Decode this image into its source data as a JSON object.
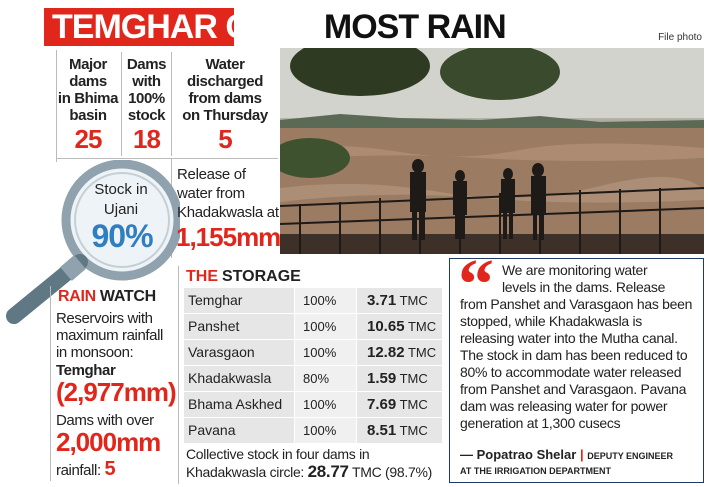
{
  "headline": {
    "part1": "TEMGHAR GETS",
    "part2": "MOST RAIN"
  },
  "credit": "File photo",
  "stats": [
    {
      "label_lines": [
        "Major",
        "dams",
        "in Bhima",
        "basin"
      ],
      "value": "25"
    },
    {
      "label_lines": [
        "Dams",
        "with",
        "100%",
        "stock"
      ],
      "value": "18"
    },
    {
      "label_lines": [
        "Water",
        "discharged",
        "from dams",
        "on Thursday"
      ],
      "value": "5"
    }
  ],
  "ujani": {
    "label_lines": [
      "Stock in",
      "Ujani"
    ],
    "value": "90%"
  },
  "release": {
    "label_lines": [
      "Release of",
      "water from",
      "Khadakwasla at"
    ],
    "value": "1,155mm"
  },
  "rain_watch": {
    "head_red": "RAIN",
    "head_dark": "WATCH",
    "max_label_lines": [
      "Reservoirs with",
      "maximum rainfall",
      "in monsoon:"
    ],
    "max_dam": "Temghar",
    "max_value": "(2,977mm)",
    "over_label": "Dams with over",
    "over_value": "2,000mm",
    "rainfall_label": "rainfall:",
    "rainfall_count": "5"
  },
  "storage": {
    "head_red": "THE",
    "head_dark": "STORAGE",
    "rows": [
      {
        "dam": "Temghar",
        "pct": "100%",
        "tmc": "3.71",
        "unit": "TMC"
      },
      {
        "dam": "Panshet",
        "pct": "100%",
        "tmc": "10.65",
        "unit": "TMC"
      },
      {
        "dam": "Varasgaon",
        "pct": "100%",
        "tmc": "12.82",
        "unit": "TMC"
      },
      {
        "dam": "Khadakwasla",
        "pct": "80%",
        "tmc": "1.59",
        "unit": "TMC"
      },
      {
        "dam": "Bhama Askhed",
        "pct": "100%",
        "tmc": "7.69",
        "unit": "TMC"
      },
      {
        "dam": "Pavana",
        "pct": "100%",
        "tmc": "8.51",
        "unit": "TMC"
      }
    ],
    "collective_line1": "Collective stock in four dams in",
    "collective_prefix": "Khadakwasla circle:",
    "collective_value": "28.77",
    "collective_suffix": "TMC (98.7%)"
  },
  "quote": {
    "lines": [
      "We are monitoring water",
      "levels in the dams. Release",
      "from Panshet and Varasgaon has been",
      "stopped, while Khadakwasla is",
      "releasing water into the Mutha canal.",
      "The stock in dam has been reduced to",
      "80% to accommodate water released",
      "from Panshet and Varasgaon. Pavana",
      "dam was releasing water for power",
      "generation at 1,300 cusecs"
    ],
    "author": "— Popatrao Shelar",
    "sep": "|",
    "role": "DEPUTY ENGINEER",
    "dept": "AT THE IRRIGATION DEPARTMENT"
  },
  "colors": {
    "accent": "#e1261c",
    "blue": "#2e7ec0",
    "navy": "#1f3b68"
  }
}
